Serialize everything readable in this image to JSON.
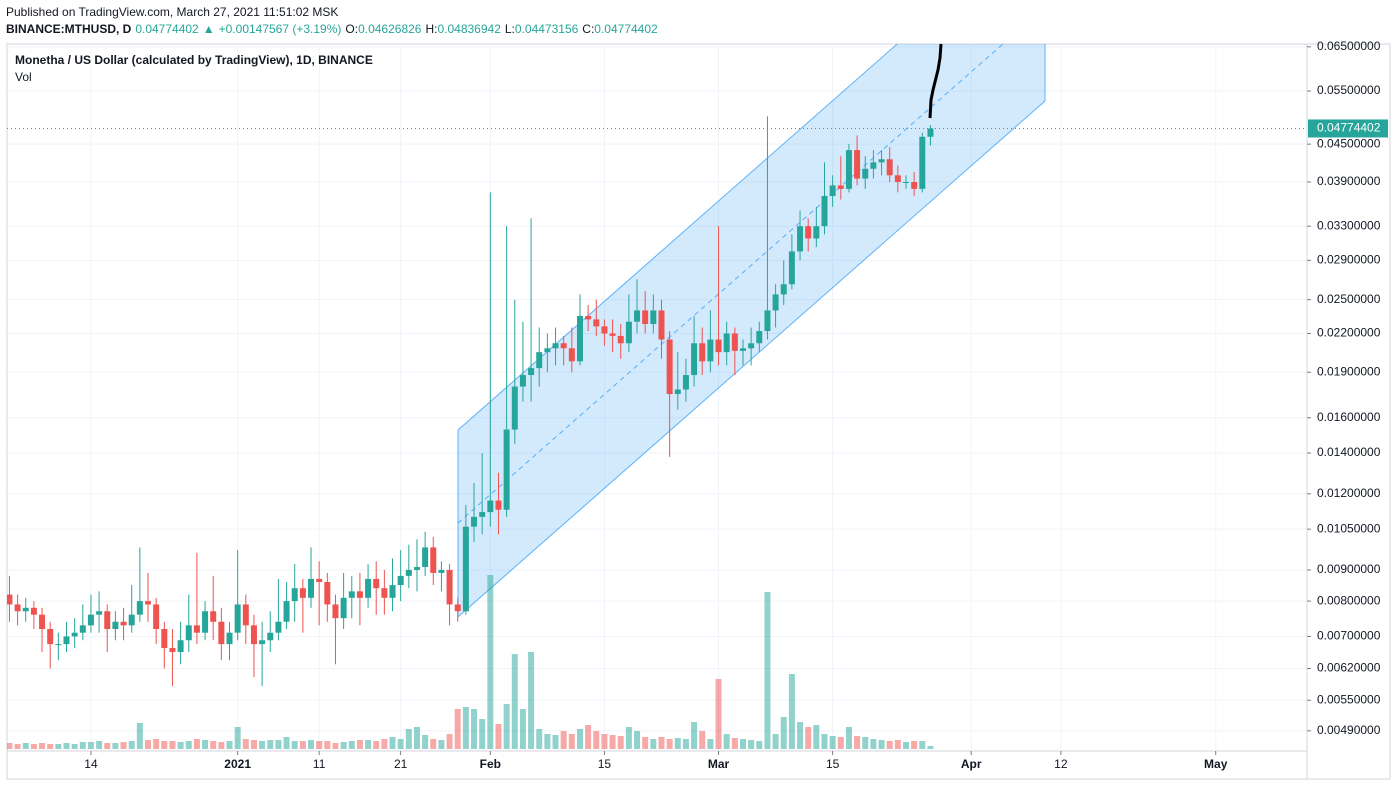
{
  "header": {
    "published": "Published on TradingView.com, March 27, 2021 11:51:02 MSK",
    "symbol": "BINANCE:MTHUSD, D",
    "arrow": "▲",
    "change": "+0.00147567 (+3.19%)",
    "ohlc_labels": [
      "O:",
      "H:",
      "L:",
      "C:"
    ]
  },
  "chart_data": {
    "type": "candlestick",
    "title": "Monetha / US Dollar (calculated by TradingView), 1D, BINANCE",
    "volume_label": "Vol",
    "up_color": "#26a69a",
    "down_color": "#ef5350",
    "log_scale": true,
    "grid": true,
    "x": [
      0,
      1,
      2,
      3,
      4,
      5,
      6,
      7,
      8,
      9,
      10,
      11,
      12,
      13,
      14,
      15,
      16,
      17,
      18,
      19,
      20,
      21,
      22,
      23,
      24,
      25,
      26,
      27,
      28,
      29,
      30,
      31,
      32,
      33,
      34,
      35,
      36,
      37,
      38,
      39,
      40,
      41,
      42,
      43,
      44,
      45,
      46,
      47,
      48,
      49,
      50,
      51,
      52,
      53,
      54,
      55,
      56,
      57,
      58,
      59,
      60,
      61,
      62,
      63,
      64,
      65,
      66,
      67,
      68,
      69,
      70,
      71,
      72,
      73,
      74,
      75,
      76,
      77,
      78,
      79,
      80,
      81,
      82,
      83,
      84,
      85,
      86,
      87,
      88,
      89,
      90,
      91,
      92,
      93,
      94,
      95,
      96,
      97,
      98,
      99,
      100,
      101,
      102,
      103,
      104,
      105,
      106,
      107,
      108,
      109,
      110,
      111,
      112,
      113
    ],
    "open": [
      0.0082,
      0.0079,
      0.0077,
      0.0078,
      0.0076,
      0.0072,
      0.0068,
      0.0068,
      0.007,
      0.0071,
      0.0073,
      0.0076,
      0.0077,
      0.0072,
      0.0074,
      0.0073,
      0.0076,
      0.008,
      0.0079,
      0.0072,
      0.0067,
      0.0066,
      0.0069,
      0.0073,
      0.0071,
      0.0077,
      0.0074,
      0.0068,
      0.0071,
      0.0079,
      0.0073,
      0.0068,
      0.0069,
      0.0071,
      0.0074,
      0.008,
      0.0084,
      0.0081,
      0.0087,
      0.0086,
      0.0079,
      0.0075,
      0.0081,
      0.0083,
      0.0081,
      0.0087,
      0.0084,
      0.0081,
      0.0085,
      0.0088,
      0.009,
      0.0091,
      0.0098,
      0.0089,
      0.009,
      0.0079,
      0.0077,
      0.0106,
      0.011,
      0.0112,
      0.0117,
      0.0113,
      0.0153,
      0.018,
      0.0188,
      0.0193,
      0.0205,
      0.0208,
      0.0212,
      0.0208,
      0.0198,
      0.0235,
      0.0232,
      0.0226,
      0.022,
      0.0218,
      0.0212,
      0.023,
      0.024,
      0.0228,
      0.024,
      0.0215,
      0.0175,
      0.0178,
      0.0188,
      0.0212,
      0.0198,
      0.0215,
      0.0205,
      0.022,
      0.0206,
      0.0208,
      0.0212,
      0.0222,
      0.024,
      0.0255,
      0.0265,
      0.03,
      0.033,
      0.0315,
      0.033,
      0.037,
      0.0385,
      0.038,
      0.044,
      0.0395,
      0.041,
      0.042,
      0.0425,
      0.04,
      0.039,
      0.039,
      0.038,
      0.04626826
    ],
    "high": [
      0.0088,
      0.0082,
      0.0081,
      0.008,
      0.0078,
      0.0074,
      0.0071,
      0.0074,
      0.0075,
      0.0079,
      0.0082,
      0.0083,
      0.0079,
      0.0077,
      0.0078,
      0.0085,
      0.0098,
      0.0089,
      0.0081,
      0.0074,
      0.0072,
      0.0074,
      0.0082,
      0.0096,
      0.008,
      0.0088,
      0.0078,
      0.0074,
      0.0097,
      0.0082,
      0.0076,
      0.0074,
      0.0077,
      0.0087,
      0.0086,
      0.0092,
      0.0087,
      0.0098,
      0.0093,
      0.0089,
      0.0082,
      0.0089,
      0.0088,
      0.0089,
      0.0092,
      0.0093,
      0.009,
      0.0094,
      0.0097,
      0.0099,
      0.0101,
      0.0104,
      0.0102,
      0.0093,
      0.0092,
      0.0081,
      0.0115,
      0.0125,
      0.014,
      0.0375,
      0.013,
      0.033,
      0.025,
      0.023,
      0.034,
      0.0225,
      0.022,
      0.0225,
      0.0218,
      0.0225,
      0.0255,
      0.0245,
      0.025,
      0.0232,
      0.0232,
      0.0228,
      0.0255,
      0.027,
      0.0258,
      0.0255,
      0.025,
      0.0222,
      0.0205,
      0.02,
      0.0235,
      0.0225,
      0.024,
      0.033,
      0.023,
      0.0225,
      0.0215,
      0.0225,
      0.023,
      0.05,
      0.0265,
      0.029,
      0.032,
      0.035,
      0.034,
      0.0355,
      0.042,
      0.04,
      0.043,
      0.045,
      0.0465,
      0.043,
      0.044,
      0.044,
      0.0445,
      0.0415,
      0.04,
      0.0405,
      0.047,
      0.04836942
    ],
    "low": [
      0.0074,
      0.0073,
      0.0074,
      0.0072,
      0.0066,
      0.0062,
      0.0064,
      0.0066,
      0.0067,
      0.0069,
      0.0071,
      0.0071,
      0.0066,
      0.0069,
      0.0069,
      0.0071,
      0.0074,
      0.0074,
      0.0068,
      0.0062,
      0.0058,
      0.0063,
      0.0066,
      0.0068,
      0.0069,
      0.0069,
      0.0064,
      0.0064,
      0.0069,
      0.0068,
      0.006,
      0.0058,
      0.0066,
      0.0069,
      0.0072,
      0.0074,
      0.0071,
      0.0078,
      0.0073,
      0.0074,
      0.0063,
      0.0072,
      0.0075,
      0.0073,
      0.0078,
      0.0076,
      0.0076,
      0.0077,
      0.008,
      0.0084,
      0.0083,
      0.0088,
      0.0085,
      0.0083,
      0.0073,
      0.0074,
      0.0076,
      0.01,
      0.0103,
      0.0106,
      0.0103,
      0.011,
      0.0145,
      0.017,
      0.017,
      0.018,
      0.019,
      0.0195,
      0.0195,
      0.019,
      0.0195,
      0.0222,
      0.0218,
      0.021,
      0.0205,
      0.02,
      0.0205,
      0.022,
      0.022,
      0.022,
      0.02,
      0.0138,
      0.0165,
      0.017,
      0.018,
      0.0188,
      0.019,
      0.0195,
      0.0195,
      0.0188,
      0.0195,
      0.0195,
      0.0205,
      0.0215,
      0.0225,
      0.0245,
      0.026,
      0.029,
      0.03,
      0.0305,
      0.032,
      0.0355,
      0.0365,
      0.0375,
      0.0385,
      0.038,
      0.0395,
      0.04,
      0.039,
      0.0375,
      0.038,
      0.037,
      0.0375,
      0.04473156
    ],
    "close": [
      0.0079,
      0.0077,
      0.0078,
      0.0076,
      0.0072,
      0.0068,
      0.0068,
      0.007,
      0.0071,
      0.0073,
      0.0076,
      0.0077,
      0.0072,
      0.0074,
      0.0073,
      0.0076,
      0.008,
      0.0079,
      0.0072,
      0.0067,
      0.0066,
      0.0069,
      0.0073,
      0.0071,
      0.0077,
      0.0074,
      0.0068,
      0.0071,
      0.0079,
      0.0073,
      0.0068,
      0.0069,
      0.0071,
      0.0074,
      0.008,
      0.0084,
      0.0081,
      0.0087,
      0.0086,
      0.0079,
      0.0075,
      0.0081,
      0.0083,
      0.0081,
      0.0087,
      0.0084,
      0.0081,
      0.0085,
      0.0088,
      0.009,
      0.0091,
      0.0098,
      0.0089,
      0.009,
      0.0079,
      0.0077,
      0.0106,
      0.011,
      0.0112,
      0.0117,
      0.0113,
      0.0153,
      0.018,
      0.0188,
      0.0193,
      0.0205,
      0.0208,
      0.0212,
      0.0208,
      0.0198,
      0.0235,
      0.0232,
      0.0226,
      0.022,
      0.0218,
      0.0212,
      0.023,
      0.024,
      0.0228,
      0.024,
      0.0215,
      0.0175,
      0.0178,
      0.0188,
      0.0212,
      0.0198,
      0.0215,
      0.0205,
      0.022,
      0.0206,
      0.0208,
      0.0212,
      0.0222,
      0.024,
      0.0255,
      0.0265,
      0.03,
      0.033,
      0.0315,
      0.033,
      0.037,
      0.0385,
      0.038,
      0.044,
      0.0395,
      0.041,
      0.042,
      0.0425,
      0.04,
      0.039,
      0.039,
      0.038,
      0.04627,
      0.04774402
    ],
    "volume": [
      6,
      5,
      6,
      5,
      6,
      5,
      5,
      6,
      5,
      7,
      7,
      8,
      6,
      6,
      7,
      8,
      26,
      9,
      10,
      8,
      8,
      7,
      8,
      10,
      9,
      8,
      7,
      8,
      22,
      10,
      9,
      8,
      9,
      9,
      12,
      8,
      8,
      9,
      8,
      8,
      6,
      7,
      8,
      9,
      9,
      8,
      10,
      12,
      10,
      20,
      22,
      14,
      10,
      9,
      15,
      40,
      42,
      40,
      30,
      174,
      25,
      45,
      95,
      40,
      97,
      20,
      15,
      14,
      18,
      15,
      20,
      24,
      18,
      15,
      14,
      13,
      22,
      18,
      12,
      10,
      12,
      10,
      11,
      10,
      27,
      18,
      10,
      70,
      15,
      11,
      10,
      9,
      8,
      157,
      15,
      32,
      75,
      27,
      22,
      24,
      15,
      13,
      12,
      22,
      13,
      12,
      10,
      9,
      8,
      9,
      7,
      8,
      8,
      3
    ],
    "xlim": [
      -0.3,
      159.2
    ],
    "xticks": [
      {
        "value": 10,
        "label": "14"
      },
      {
        "value": 28,
        "label": "2021"
      },
      {
        "value": 38,
        "label": "11"
      },
      {
        "value": 48,
        "label": "21"
      },
      {
        "value": 59,
        "label": "Feb"
      },
      {
        "value": 73,
        "label": "15"
      },
      {
        "value": 87,
        "label": "Mar"
      },
      {
        "value": 101,
        "label": "15"
      },
      {
        "value": 118,
        "label": "Apr"
      },
      {
        "value": 129,
        "label": "12"
      },
      {
        "value": 148,
        "label": "May"
      }
    ],
    "ylim": [
      0.00454,
      0.0657
    ],
    "yticks": [
      {
        "value": 0.065,
        "label": "0.06500000"
      },
      {
        "value": 0.055,
        "label": "0.05500000"
      },
      {
        "value": 0.045,
        "label": "0.04500000"
      },
      {
        "value": 0.039,
        "label": "0.03900000"
      },
      {
        "value": 0.033,
        "label": "0.03300000"
      },
      {
        "value": 0.029,
        "label": "0.02900000"
      },
      {
        "value": 0.025,
        "label": "0.02500000"
      },
      {
        "value": 0.022,
        "label": "0.02200000"
      },
      {
        "value": 0.019,
        "label": "0.01900000"
      },
      {
        "value": 0.016,
        "label": "0.01600000"
      },
      {
        "value": 0.014,
        "label": "0.01400000"
      },
      {
        "value": 0.012,
        "label": "0.01200000"
      },
      {
        "value": 0.0105,
        "label": "0.01050000"
      },
      {
        "value": 0.009,
        "label": "0.00900000"
      },
      {
        "value": 0.008,
        "label": "0.00800000"
      },
      {
        "value": 0.007,
        "label": "0.00700000"
      },
      {
        "value": 0.0062,
        "label": "0.00620000"
      },
      {
        "value": 0.0055,
        "label": "0.00550000"
      },
      {
        "value": 0.0049,
        "label": "0.00490000"
      }
    ]
  }
}
